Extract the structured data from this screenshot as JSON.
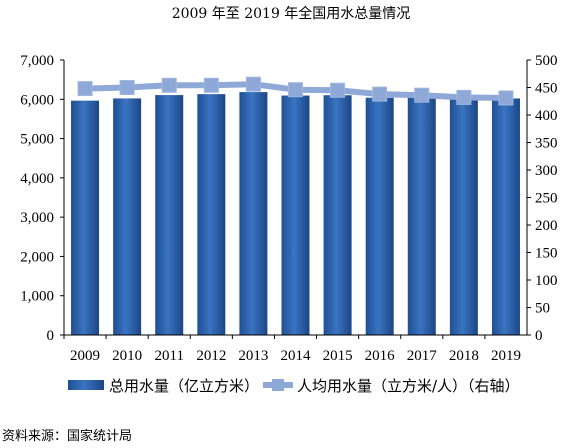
{
  "chart_data": {
    "type": "bar",
    "title": "2009 年至 2019 年全国用水总量情况",
    "categories": [
      "2009",
      "2010",
      "2011",
      "2012",
      "2013",
      "2014",
      "2015",
      "2016",
      "2017",
      "2018",
      "2019"
    ],
    "series": [
      {
        "name": "总用水量（亿立方米）",
        "type": "bar",
        "axis": "left",
        "color": "#2a5fa8",
        "values": [
          5965,
          6022,
          6107,
          6131,
          6183,
          6095,
          6103,
          6040,
          6043,
          6015,
          6021
        ]
      },
      {
        "name": "人均用水量（立方米/人）（右轴）",
        "type": "line",
        "axis": "right",
        "color": "#8ea8d8",
        "values": [
          448,
          450,
          454,
          454,
          456,
          446,
          445,
          438,
          436,
          432,
          431
        ]
      }
    ],
    "y_left": {
      "min": 0,
      "max": 7000,
      "ticks": [
        "0",
        "1,000",
        "2,000",
        "3,000",
        "4,000",
        "5,000",
        "6,000",
        "7,000"
      ]
    },
    "y_right": {
      "min": 0,
      "max": 500,
      "ticks": [
        "0",
        "50",
        "100",
        "150",
        "200",
        "250",
        "300",
        "350",
        "400",
        "450",
        "500"
      ]
    },
    "grid": false,
    "legend_position": "bottom"
  },
  "source": "资料来源：国家统计局"
}
